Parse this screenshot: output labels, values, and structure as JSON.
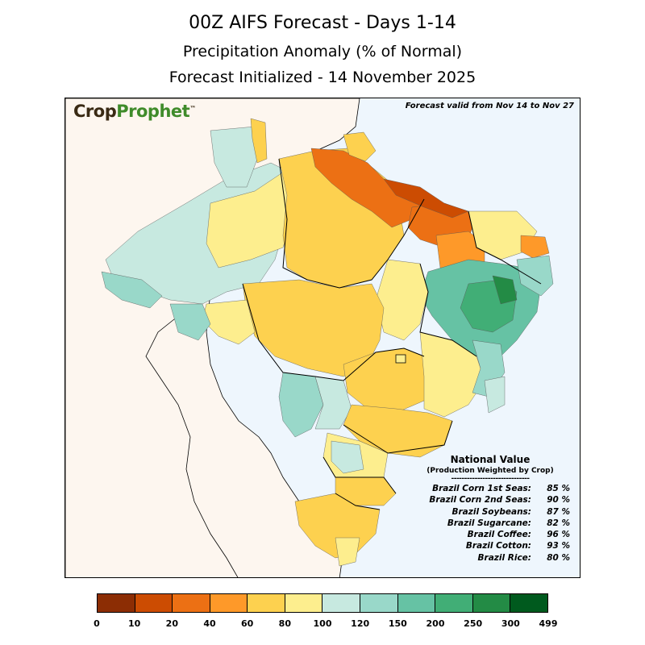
{
  "header": {
    "line1": "00Z AIFS Forecast  -  Days 1-14",
    "line2": "Precipitation Anomaly (% of Normal)",
    "line3": "Forecast Initialized - 14 November 2025"
  },
  "map": {
    "logo_crop": "Crop",
    "logo_prophet": "Prophet",
    "logo_tm": "™",
    "valid_text": "Forecast valid from Nov 14 to Nov 27",
    "ocean_color": "#eef6fd",
    "land_color": "#fdf6ef"
  },
  "national": {
    "title": "National Value",
    "subtitle": "(Production Weighted by Crop)",
    "separator": "------------------------------",
    "rows": [
      {
        "label": "Brazil Corn 1st Seas:",
        "value": "85 %"
      },
      {
        "label": "Brazil Corn 2nd Seas:",
        "value": "90 %"
      },
      {
        "label": "Brazil Soybeans:",
        "value": "87 %"
      },
      {
        "label": "Brazil Sugarcane:",
        "value": "82 %"
      },
      {
        "label": "Brazil Coffee:",
        "value": "96 %"
      },
      {
        "label": "Brazil Cotton:",
        "value": "93 %"
      },
      {
        "label": "Brazil Rice:",
        "value": "80 %"
      }
    ]
  },
  "colorbar": {
    "colors": [
      "#8c2d04",
      "#cc4c02",
      "#ec7014",
      "#fe9929",
      "#fdd14f",
      "#fdee8e",
      "#c7e9e0",
      "#99d8c9",
      "#66c2a4",
      "#41ae76",
      "#238b45",
      "#005a1e"
    ],
    "ticks": [
      "0",
      "10",
      "20",
      "40",
      "60",
      "80",
      "100",
      "120",
      "150",
      "200",
      "250",
      "300",
      "499"
    ]
  }
}
